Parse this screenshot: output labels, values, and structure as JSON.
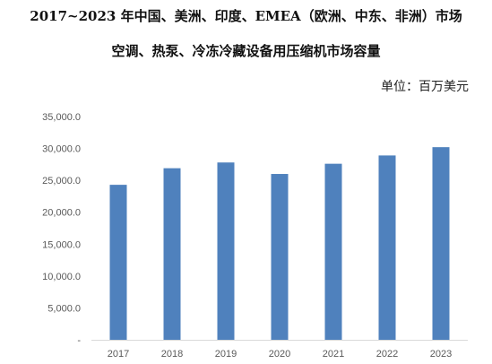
{
  "chart_data": {
    "type": "bar",
    "title": [
      "2017~2023 年中国、美洲、印度、EMEA（欧洲、中东、非洲）市场",
      "空调、热泵、冷冻冷藏设备用压缩机市场容量"
    ],
    "unit_label": "单位：百万美元",
    "categories": [
      "2017",
      "2018",
      "2019",
      "2020",
      "2021",
      "2022",
      "2023"
    ],
    "values": [
      24300,
      26900,
      27800,
      26000,
      27600,
      28900,
      30200
    ],
    "ylim": [
      0,
      35000
    ],
    "yticks": [
      0,
      5000,
      10000,
      15000,
      20000,
      25000,
      30000,
      35000
    ],
    "ytick_labels": [
      "-",
      "5,000.0",
      "10,000.0",
      "15,000.0",
      "20,000.0",
      "25,000.0",
      "30,000.0",
      "35,000.0"
    ],
    "bar_color": "#4f81bd",
    "grid": false,
    "legend": "none"
  }
}
